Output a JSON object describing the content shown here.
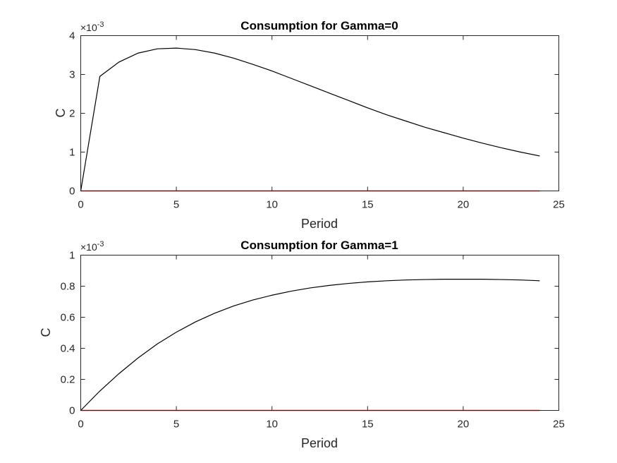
{
  "chart_data": [
    {
      "type": "line",
      "title": "Consumption for Gamma=0",
      "xlabel": "Period",
      "ylabel": "C",
      "xlim": [
        0,
        25
      ],
      "ylim": [
        0,
        4
      ],
      "xticks": [
        0,
        5,
        10,
        15,
        20,
        25
      ],
      "yticks": [
        0,
        1,
        2,
        3,
        4
      ],
      "y_exponent_base": "×10",
      "y_exponent": "-3",
      "grid": false,
      "series": [
        {
          "color": "#000000",
          "x": [
            0,
            1,
            2,
            3,
            4,
            5,
            6,
            7,
            8,
            9,
            10,
            11,
            12,
            13,
            14,
            15,
            16,
            17,
            18,
            19,
            20,
            21,
            22,
            23,
            24
          ],
          "y": [
            0,
            2.95,
            3.32,
            3.55,
            3.66,
            3.68,
            3.64,
            3.55,
            3.42,
            3.26,
            3.09,
            2.9,
            2.71,
            2.52,
            2.33,
            2.14,
            1.96,
            1.8,
            1.64,
            1.5,
            1.36,
            1.23,
            1.11,
            1.0,
            0.9
          ]
        },
        {
          "color": "#ff0000",
          "x": [
            0,
            24
          ],
          "y": [
            0,
            0
          ]
        }
      ]
    },
    {
      "type": "line",
      "title": "Consumption for Gamma=1",
      "xlabel": "Period",
      "ylabel": "C",
      "xlim": [
        0,
        25
      ],
      "ylim": [
        0,
        1
      ],
      "xticks": [
        0,
        5,
        10,
        15,
        20,
        25
      ],
      "yticks": [
        0,
        0.2,
        0.4,
        0.6,
        0.8,
        1
      ],
      "ytick_labels": [
        "0",
        "0.2",
        "0.4",
        "0.6",
        "0.8",
        "1"
      ],
      "y_exponent_base": "×10",
      "y_exponent": "-3",
      "grid": false,
      "series": [
        {
          "color": "#000000",
          "x": [
            0,
            1,
            2,
            3,
            4,
            5,
            6,
            7,
            8,
            9,
            10,
            11,
            12,
            13,
            14,
            15,
            16,
            17,
            18,
            19,
            20,
            21,
            22,
            23,
            24
          ],
          "y": [
            0,
            0.125,
            0.237,
            0.338,
            0.428,
            0.504,
            0.57,
            0.626,
            0.673,
            0.711,
            0.742,
            0.768,
            0.789,
            0.805,
            0.818,
            0.828,
            0.835,
            0.84,
            0.843,
            0.845,
            0.845,
            0.845,
            0.843,
            0.84,
            0.835
          ]
        },
        {
          "color": "#ff0000",
          "x": [
            0,
            24
          ],
          "y": [
            0,
            0
          ]
        }
      ]
    }
  ]
}
